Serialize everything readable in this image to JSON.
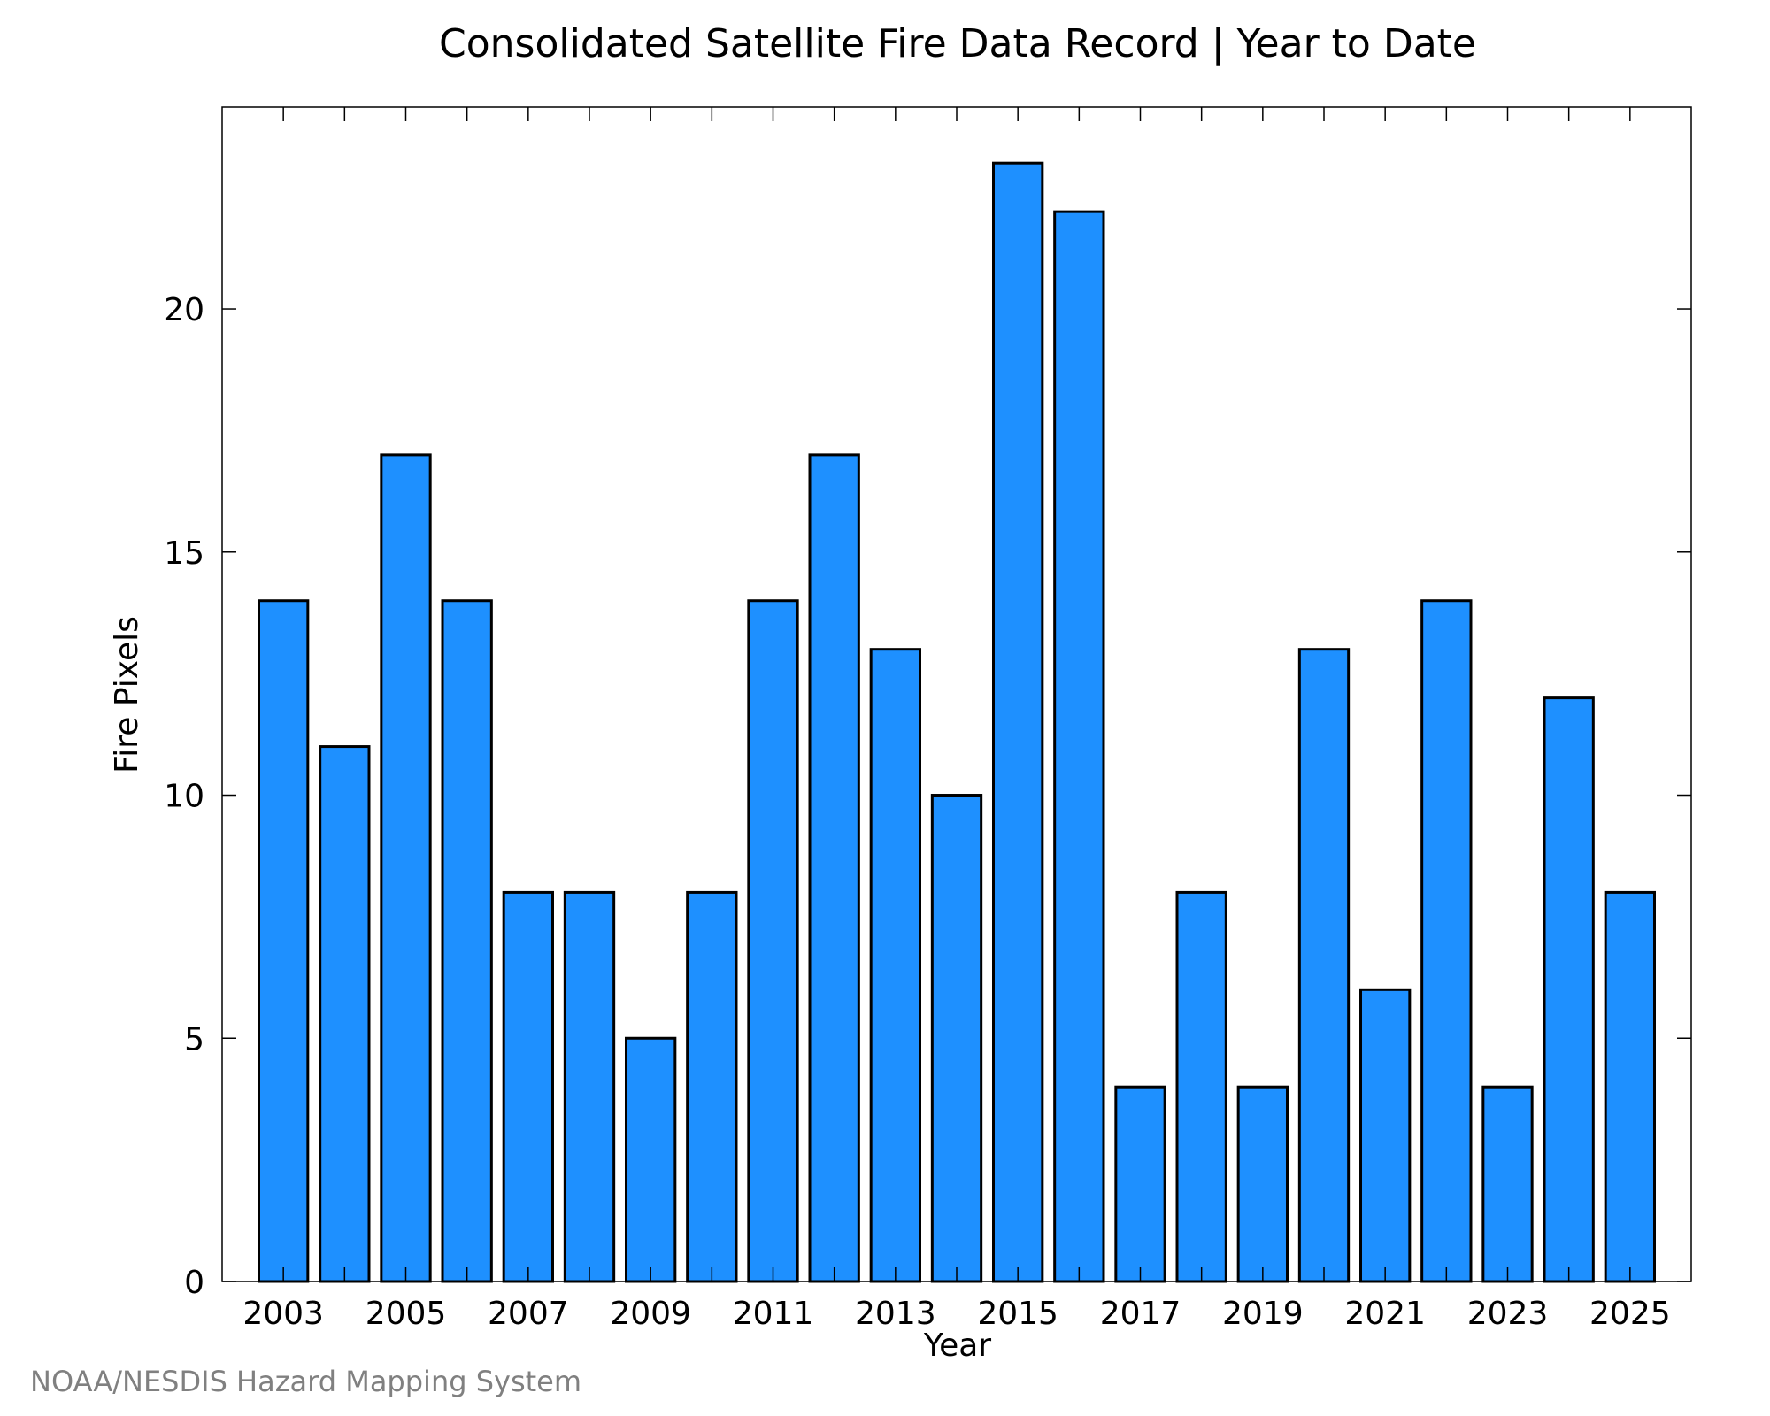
{
  "chart_data": {
    "type": "bar",
    "title": "Consolidated Satellite Fire Data Record | Year to Date",
    "xlabel": "Year",
    "ylabel": "Fire Pixels",
    "categories": [
      "2003",
      "2004",
      "2005",
      "2006",
      "2007",
      "2008",
      "2009",
      "2010",
      "2011",
      "2012",
      "2013",
      "2014",
      "2015",
      "2016",
      "2017",
      "2018",
      "2019",
      "2020",
      "2021",
      "2022",
      "2023",
      "2024",
      "2025"
    ],
    "values": [
      14,
      11,
      17,
      14,
      8,
      8,
      5,
      8,
      14,
      17,
      13,
      10,
      23,
      22,
      4,
      8,
      4,
      13,
      6,
      14,
      4,
      12,
      8
    ],
    "x_tick_labels": [
      "2003",
      "2005",
      "2007",
      "2009",
      "2011",
      "2013",
      "2015",
      "2017",
      "2019",
      "2021",
      "2023",
      "2025"
    ],
    "y_ticks": [
      0,
      5,
      10,
      15,
      20
    ],
    "ylim": [
      0,
      24.15
    ],
    "bar_color": "#1e90ff",
    "grid": false,
    "legend": "none"
  },
  "footer": {
    "credit": "NOAA/NESDIS Hazard Mapping System"
  }
}
